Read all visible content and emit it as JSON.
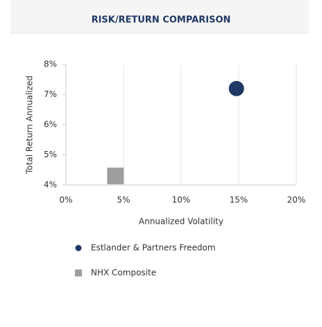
{
  "chart_data": {
    "type": "scatter",
    "title": "RISK/RETURN COMPARISON",
    "x_label": "Annualized Volatility",
    "y_label": "Total Return Annualized",
    "series": [
      {
        "name": "Estlander & Partners Freedom",
        "color": "#1f3864",
        "marker": "circle",
        "x": [
          14.8
        ],
        "values": [
          7.2
        ]
      },
      {
        "name": "NHX Composite",
        "color": "#9e9e9e",
        "marker": "square",
        "x": [
          4.3
        ],
        "values": [
          4.3
        ]
      }
    ],
    "xlim": [
      0,
      20
    ],
    "xticks": [
      {
        "value": 0,
        "label": "0%"
      },
      {
        "value": 5,
        "label": "5%"
      },
      {
        "value": 10,
        "label": "10%"
      },
      {
        "value": 15,
        "label": "15%"
      },
      {
        "value": 20,
        "label": "20%"
      }
    ],
    "ylim": [
      4,
      8
    ],
    "yticks": [
      {
        "value": 4,
        "label": "4%"
      },
      {
        "value": 5,
        "label": "5%"
      },
      {
        "value": 6,
        "label": "6%"
      },
      {
        "value": 7,
        "label": "7%"
      },
      {
        "value": 8,
        "label": "8%"
      }
    ],
    "grid": true
  }
}
